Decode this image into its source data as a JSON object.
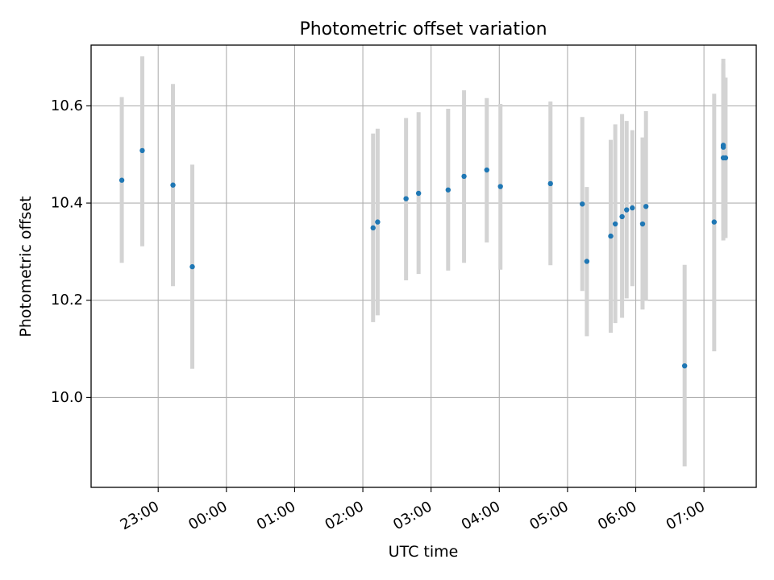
{
  "chart_data": {
    "type": "scatter",
    "title": "Photometric offset variation",
    "xlabel": "UTC time",
    "ylabel": "Photometric offset",
    "xlim": [
      "22:01",
      "31:46"
    ],
    "ylim": [
      9.815,
      10.725
    ],
    "x_ticks": [
      "23:00",
      "00:00",
      "01:00",
      "02:00",
      "03:00",
      "04:00",
      "05:00",
      "06:00",
      "07:00"
    ],
    "y_ticks": [
      "10.0",
      "10.2",
      "10.4",
      "10.6"
    ],
    "grid": true,
    "colors": {
      "points": "#1f77b4",
      "errorbars": "#d3d3d3",
      "grid": "#b0b0b0"
    },
    "series": [
      {
        "points": [
          {
            "t": "22:28",
            "y": 10.447,
            "lo": 10.277,
            "hi": 10.618
          },
          {
            "t": "22:46",
            "y": 10.508,
            "lo": 10.311,
            "hi": 10.702
          },
          {
            "t": "23:13",
            "y": 10.437,
            "lo": 10.229,
            "hi": 10.645
          },
          {
            "t": "23:30",
            "y": 10.269,
            "lo": 10.059,
            "hi": 10.479
          },
          {
            "t": "26:09",
            "y": 10.349,
            "lo": 10.155,
            "hi": 10.543
          },
          {
            "t": "26:13",
            "y": 10.361,
            "lo": 10.169,
            "hi": 10.553
          },
          {
            "t": "26:38",
            "y": 10.409,
            "lo": 10.241,
            "hi": 10.575
          },
          {
            "t": "26:49",
            "y": 10.42,
            "lo": 10.254,
            "hi": 10.587
          },
          {
            "t": "27:15",
            "y": 10.427,
            "lo": 10.261,
            "hi": 10.594
          },
          {
            "t": "27:29",
            "y": 10.455,
            "lo": 10.277,
            "hi": 10.632
          },
          {
            "t": "27:49",
            "y": 10.468,
            "lo": 10.319,
            "hi": 10.616
          },
          {
            "t": "28:01",
            "y": 10.434,
            "lo": 10.263,
            "hi": 10.604
          },
          {
            "t": "28:45",
            "y": 10.44,
            "lo": 10.272,
            "hi": 10.609
          },
          {
            "t": "29:13",
            "y": 10.398,
            "lo": 10.219,
            "hi": 10.577
          },
          {
            "t": "29:17",
            "y": 10.28,
            "lo": 10.126,
            "hi": 10.433
          },
          {
            "t": "29:38",
            "y": 10.332,
            "lo": 10.133,
            "hi": 10.53
          },
          {
            "t": "29:42",
            "y": 10.357,
            "lo": 10.153,
            "hi": 10.562
          },
          {
            "t": "29:48",
            "y": 10.372,
            "lo": 10.164,
            "hi": 10.583
          },
          {
            "t": "29:52",
            "y": 10.386,
            "lo": 10.204,
            "hi": 10.569
          },
          {
            "t": "29:57",
            "y": 10.39,
            "lo": 10.229,
            "hi": 10.55
          },
          {
            "t": "30:06",
            "y": 10.357,
            "lo": 10.181,
            "hi": 10.535
          },
          {
            "t": "30:09",
            "y": 10.393,
            "lo": 10.2,
            "hi": 10.589
          },
          {
            "t": "30:43",
            "y": 10.065,
            "lo": 9.858,
            "hi": 10.273
          },
          {
            "t": "31:09",
            "y": 10.361,
            "lo": 10.095,
            "hi": 10.625
          },
          {
            "t": "31:17",
            "y": 10.519,
            "lo": 10.343,
            "hi": 10.697
          },
          {
            "t": "31:17",
            "y": 10.515,
            "lo": 10.343,
            "hi": 10.687
          },
          {
            "t": "31:17",
            "y": 10.493,
            "lo": 10.323,
            "hi": 10.665
          },
          {
            "t": "31:19",
            "y": 10.493,
            "lo": 10.328,
            "hi": 10.658
          }
        ]
      }
    ]
  }
}
